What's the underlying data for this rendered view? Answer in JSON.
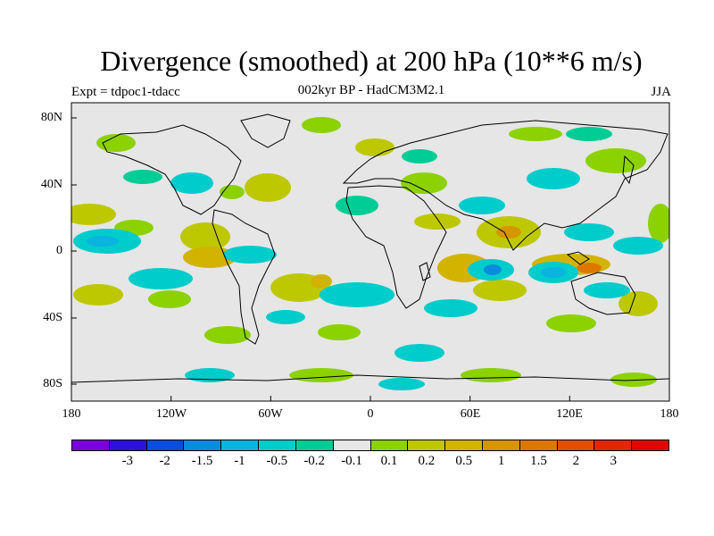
{
  "header": {
    "title": "Divergence (smoothed) at 200 hPa (10**6 m/s)",
    "subtitle": "002kyr BP - HadCM3M2.1",
    "experiment": "Expt = tdpoc1-tdacc",
    "season": "JJA"
  },
  "axes": {
    "y_labels": [
      "80N",
      "40N",
      "0",
      "40S",
      "80S"
    ],
    "x_labels": [
      "180",
      "120W",
      "60W",
      "0",
      "60E",
      "120E",
      "180"
    ]
  },
  "colorbar": {
    "colors": [
      "#7a00dc",
      "#2e10d8",
      "#0b4ede",
      "#0a8cde",
      "#0ab4de",
      "#00cccc",
      "#00cc96",
      "#e6e6e6",
      "#8cd200",
      "#bec800",
      "#d2b400",
      "#d69600",
      "#dc7800",
      "#e05000",
      "#e02800",
      "#e60000"
    ],
    "labels": [
      "-3",
      "-2",
      "-1.5",
      "-1",
      "-0.5",
      "-0.2",
      "-0.1",
      "0.1",
      "0.2",
      "0.5",
      "1",
      "1.5",
      "2",
      "3"
    ]
  }
}
